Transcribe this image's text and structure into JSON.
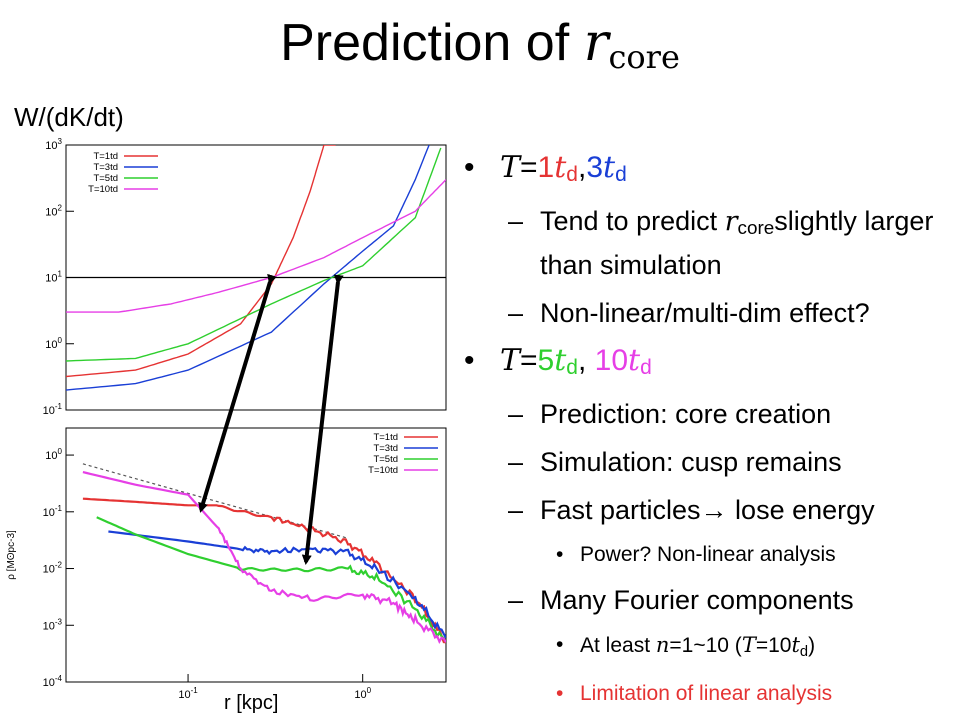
{
  "slide": {
    "title_prefix": "Prediction of ",
    "title_symbol": "r",
    "title_sub": "core",
    "top_plot_ylabel": "W/(dK/dt)",
    "bottom_plot_xlabel": "r [kpc]"
  },
  "bullets": {
    "b1": {
      "T": "T",
      "eq": "=",
      "v1": "1",
      "t": "t",
      "d": "d",
      "sep": ",",
      "v2": "3"
    },
    "b1_sub1": {
      "pre": "Tend to predict ",
      "r": "r",
      "core": "core",
      "post": "slightly larger than simulation"
    },
    "b1_sub2": "Non-linear/multi-dim effect?",
    "b2": {
      "T": "T",
      "eq": "=",
      "v1": "5",
      "t": "t",
      "d": "d",
      "sep": ", ",
      "v2": "10"
    },
    "b2_sub1": "Prediction: core creation",
    "b2_sub2": "Simulation: cusp remains",
    "b2_sub3": "Fast particles→ lose energy",
    "b2_sub3_sub": "Power? Non-linear analysis",
    "b2_sub4": "Many Fourier components",
    "b2_sub4_sub1": {
      "pre": "At least ",
      "n": "n",
      "mid": "=1~10 (",
      "T": "T",
      "eq": "=10",
      "t": "t",
      "d": "d",
      "post": ")"
    },
    "b2_sub4_sub2": "Limitation of linear analysis"
  },
  "colors": {
    "red": "#e53333",
    "blue": "#1a3fd6",
    "green": "#2fcf2f",
    "magenta": "#e63fe6",
    "black": "#000000"
  },
  "chart_data": [
    {
      "type": "line",
      "title": "",
      "xlabel": "",
      "ylabel": "W/(dK/dt)",
      "yscale": "log",
      "ylim": [
        0.1,
        1000
      ],
      "xlim": [
        0.02,
        3
      ],
      "xscale": "log",
      "y_tick_labels": [
        "10-1",
        "100",
        "101",
        "102",
        "103"
      ],
      "legend_position": "top-left",
      "reference_line": {
        "y": 10
      },
      "series": [
        {
          "name": "T=1td",
          "color": "#e53333",
          "x": [
            0.02,
            0.05,
            0.1,
            0.2,
            0.3,
            0.4,
            0.5,
            0.6,
            0.7
          ],
          "y": [
            0.32,
            0.4,
            0.7,
            2.0,
            8.0,
            40,
            200,
            1000,
            1000
          ]
        },
        {
          "name": "T=3td",
          "color": "#1a3fd6",
          "x": [
            0.02,
            0.05,
            0.1,
            0.3,
            0.6,
            1.0,
            1.5,
            2.0,
            2.4
          ],
          "y": [
            0.2,
            0.25,
            0.4,
            1.5,
            8.0,
            25,
            60,
            300,
            1000
          ]
        },
        {
          "name": "T=5td",
          "color": "#2fcf2f",
          "x": [
            0.02,
            0.05,
            0.1,
            0.3,
            0.6,
            1.0,
            2.0,
            2.8
          ],
          "y": [
            0.55,
            0.6,
            1.0,
            4.0,
            9.0,
            15,
            80,
            900
          ]
        },
        {
          "name": "T=10td",
          "color": "#e63fe6",
          "x": [
            0.02,
            0.04,
            0.08,
            0.15,
            0.3,
            0.6,
            1.0,
            2.0,
            3.0
          ],
          "y": [
            3.0,
            3.0,
            4.0,
            6.0,
            10,
            20,
            40,
            100,
            300
          ]
        }
      ]
    },
    {
      "type": "line",
      "title": "",
      "xlabel": "r [kpc]",
      "ylabel": "ρ [Mʘpc-3]",
      "xscale": "log",
      "yscale": "log",
      "xlim": [
        0.02,
        3
      ],
      "ylim": [
        0.0001,
        3
      ],
      "x_tick_labels": [
        "10-1",
        "100"
      ],
      "y_tick_labels": [
        "10-4",
        "10-3",
        "10-2",
        "10-1",
        "100"
      ],
      "legend_position": "top-right",
      "series": [
        {
          "name": "T=1td",
          "color": "#e53333",
          "x": [
            0.025,
            0.05,
            0.1,
            0.15,
            0.3,
            0.5,
            0.8,
            1.2,
            2.0,
            3.0
          ],
          "y": [
            0.17,
            0.15,
            0.13,
            0.13,
            0.08,
            0.05,
            0.03,
            0.012,
            0.003,
            0.0005
          ]
        },
        {
          "name": "T=3td",
          "color": "#1a3fd6",
          "x": [
            0.035,
            0.1,
            0.2,
            0.3,
            0.5,
            0.8,
            1.2,
            2.0,
            3.0
          ],
          "y": [
            0.045,
            0.03,
            0.022,
            0.02,
            0.022,
            0.02,
            0.01,
            0.003,
            0.0006
          ]
        },
        {
          "name": "T=5td",
          "color": "#2fcf2f",
          "x": [
            0.03,
            0.05,
            0.1,
            0.2,
            0.4,
            0.8,
            1.2,
            2.0,
            3.0
          ],
          "y": [
            0.08,
            0.04,
            0.018,
            0.01,
            0.01,
            0.01,
            0.007,
            0.002,
            0.0005
          ]
        },
        {
          "name": "T=10td",
          "color": "#e63fe6",
          "x": [
            0.025,
            0.05,
            0.1,
            0.15,
            0.2,
            0.3,
            0.5,
            1.0,
            1.5,
            2.0,
            3.0
          ],
          "y": [
            0.5,
            0.3,
            0.2,
            0.05,
            0.01,
            0.004,
            0.003,
            0.0035,
            0.0025,
            0.0012,
            0.0005
          ]
        }
      ],
      "reference_line": {
        "style": "dashed",
        "color": "#555555",
        "x": [
          0.025,
          0.8
        ],
        "y": [
          0.7,
          0.035
        ]
      }
    }
  ]
}
